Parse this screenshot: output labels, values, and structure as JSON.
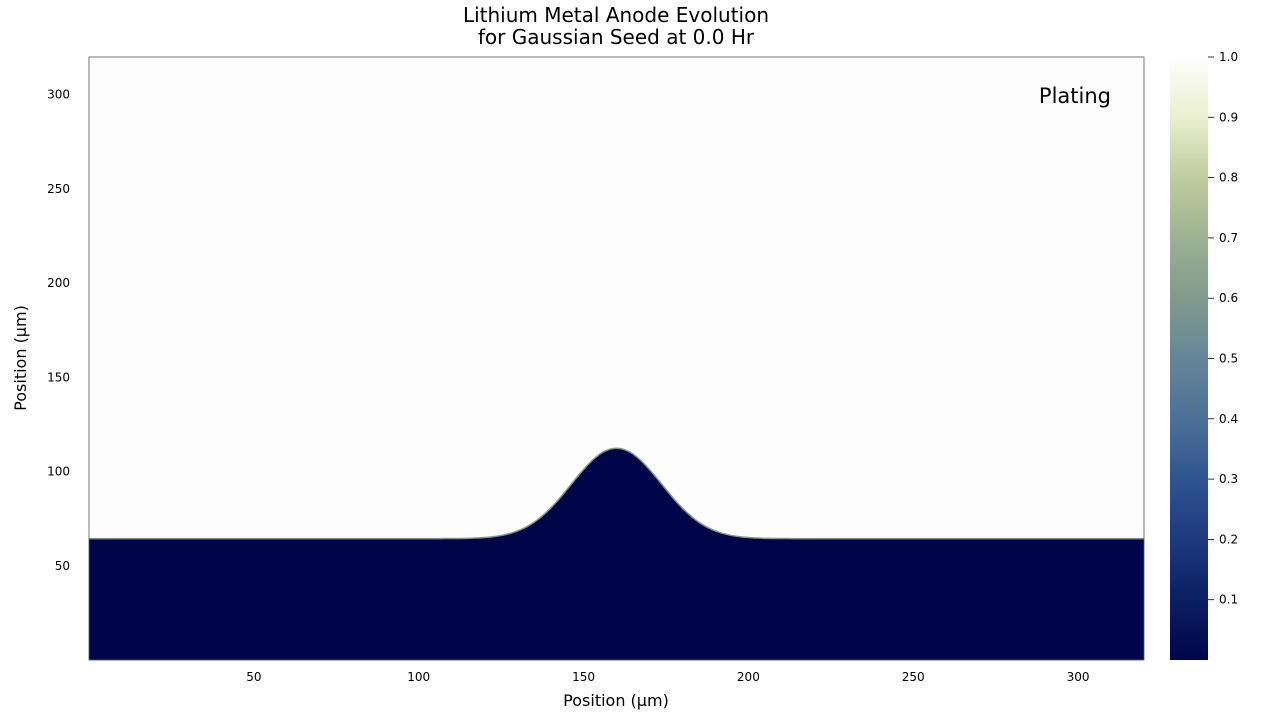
{
  "chart_data": {
    "type": "heatmap",
    "title_line1": "Lithium Metal Anode Evolution",
    "title_line2": "for Gaussian Seed at 0.0 Hr",
    "xlabel": "Position (µm)",
    "ylabel": "Position (µm)",
    "xlim": [
      0,
      320
    ],
    "ylim": [
      0,
      320
    ],
    "xticks": [
      50,
      100,
      150,
      200,
      250,
      300
    ],
    "yticks": [
      50,
      100,
      150,
      200,
      250,
      300
    ],
    "annotation": "Plating",
    "interface": {
      "baseline_height": 64,
      "seed_center": 160,
      "seed_peak_height": 112,
      "seed_sigma": 13.5
    },
    "field_values": {
      "metal": 0.0,
      "electrolyte": 1.0
    },
    "colorbar": {
      "range": [
        0,
        1.0
      ],
      "ticks": [
        0.1,
        0.2,
        0.3,
        0.4,
        0.5,
        0.6,
        0.7,
        0.8,
        0.9,
        1.0
      ],
      "tick_labels": [
        "0.1",
        "0.2",
        "0.3",
        "0.4",
        "0.5",
        "0.6",
        "0.7",
        "0.8",
        "0.9",
        "1.0"
      ],
      "colormap": "davos",
      "stops": [
        {
          "v": 0.0,
          "c": "#00054a"
        },
        {
          "v": 0.1,
          "c": "#0b1f62"
        },
        {
          "v": 0.2,
          "c": "#1d3a80"
        },
        {
          "v": 0.3,
          "c": "#2f5591"
        },
        {
          "v": 0.4,
          "c": "#4c7096"
        },
        {
          "v": 0.5,
          "c": "#668698"
        },
        {
          "v": 0.6,
          "c": "#7f9a8c"
        },
        {
          "v": 0.7,
          "c": "#9db292"
        },
        {
          "v": 0.8,
          "c": "#bfcc9e"
        },
        {
          "v": 0.9,
          "c": "#eaefce"
        },
        {
          "v": 1.0,
          "c": "#fefefe"
        }
      ]
    }
  }
}
